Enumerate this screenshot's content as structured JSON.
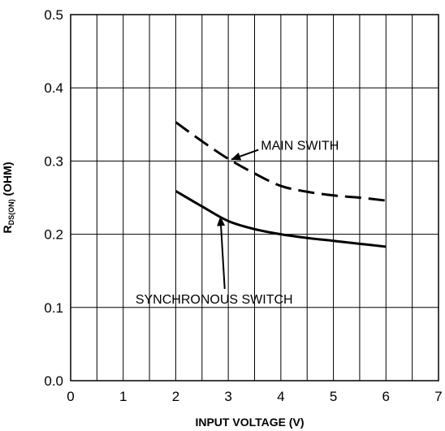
{
  "chart_data": {
    "type": "line",
    "xlabel": "INPUT VOLTAGE (V)",
    "ylabel": "(OHM)",
    "ylabel_main": "R",
    "ylabel_sub": "DS(ON)",
    "xlim": [
      0,
      7
    ],
    "ylim": [
      0,
      0.5
    ],
    "xticks": [
      "0",
      "1",
      "2",
      "3",
      "4",
      "5",
      "6",
      "7"
    ],
    "yticks": [
      "0.0",
      "0.1",
      "0.2",
      "0.3",
      "0.4",
      "0.5"
    ],
    "grid": true,
    "series": [
      {
        "name": "MAIN SWITH",
        "style": "dashed",
        "x": [
          2.0,
          2.5,
          3.0,
          3.5,
          4.0,
          4.5,
          5.0,
          5.5,
          6.0
        ],
        "y": [
          0.353,
          0.327,
          0.303,
          0.283,
          0.266,
          0.258,
          0.253,
          0.25,
          0.246
        ]
      },
      {
        "name": "SYNCHRONOUS SWITCH",
        "style": "solid",
        "x": [
          2.0,
          2.5,
          3.0,
          3.5,
          4.0,
          4.5,
          5.0,
          5.5,
          6.0
        ],
        "y": [
          0.259,
          0.238,
          0.218,
          0.207,
          0.2,
          0.195,
          0.191,
          0.187,
          0.183
        ]
      }
    ],
    "annotations": [
      {
        "text": "MAIN SWITH",
        "target_series": 0,
        "x": 3.0,
        "y": 0.3,
        "tx": 3.62,
        "ty": 0.322
      },
      {
        "text": "SYNCHRONOUS SWITCH",
        "target_series": 1,
        "x": 2.85,
        "y": 0.228,
        "tx": 2.7,
        "ty": 0.112
      }
    ]
  }
}
